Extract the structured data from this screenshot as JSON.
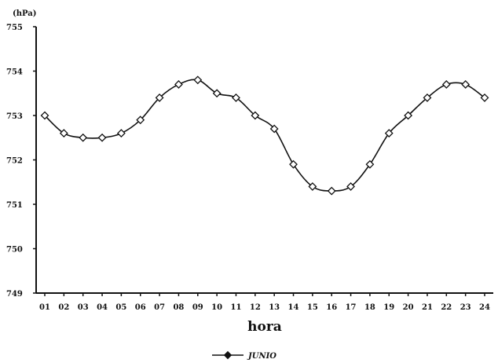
{
  "chart_data": {
    "type": "line",
    "title": "",
    "xlabel": "hora",
    "ylabel": "(hPa)",
    "categories": [
      "01",
      "02",
      "03",
      "04",
      "05",
      "06",
      "07",
      "08",
      "09",
      "10",
      "11",
      "12",
      "13",
      "14",
      "15",
      "16",
      "17",
      "18",
      "19",
      "20",
      "21",
      "22",
      "23",
      "24"
    ],
    "yticks": [
      "749",
      "750",
      "751",
      "752",
      "753",
      "754",
      "755"
    ],
    "ylim": [
      749,
      755
    ],
    "grid": false,
    "legend_position": "bottom-center",
    "series": [
      {
        "name": "JUNIO",
        "marker": "diamond",
        "values": [
          753.0,
          752.6,
          752.5,
          752.5,
          752.6,
          752.9,
          753.4,
          753.7,
          753.8,
          753.5,
          753.4,
          753.0,
          752.7,
          751.9,
          751.4,
          751.3,
          751.4,
          751.9,
          752.6,
          753.0,
          753.4,
          753.7,
          753.7,
          753.4
        ]
      }
    ]
  },
  "colors": {
    "line": "#111111",
    "axis": "#111111",
    "background": "#ffffff"
  }
}
